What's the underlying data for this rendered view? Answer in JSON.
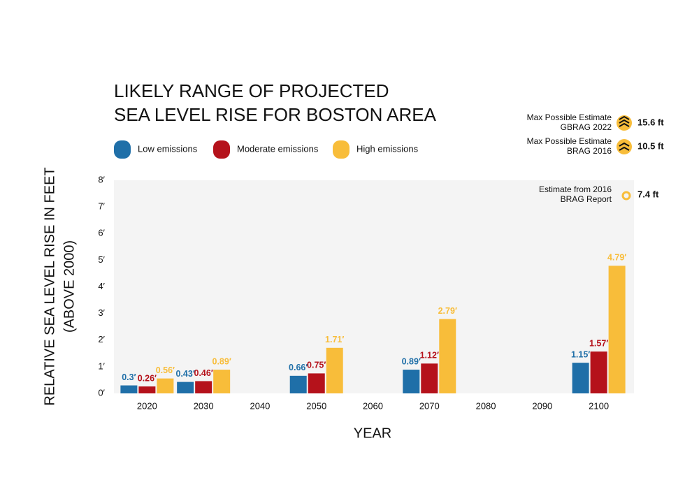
{
  "chart_data": {
    "type": "bar",
    "title": [
      "LIKELY RANGE OF PROJECTED",
      "SEA LEVEL RISE FOR BOSTON AREA"
    ],
    "y_label": [
      "RELATIVE SEA LEVEL RISE IN FEET",
      "(ABOVE 2000)"
    ],
    "x_label": "YEAR",
    "categories": [
      "2020",
      "2030",
      "2040",
      "2050",
      "2060",
      "2070",
      "2080",
      "2090",
      "2100"
    ],
    "series": [
      {
        "name": "Low emissions",
        "color": "#1f6fa8",
        "values": [
          0.3,
          0.43,
          null,
          0.66,
          null,
          0.89,
          null,
          null,
          1.15
        ],
        "value_labels": [
          "0.3′",
          "0.43′",
          null,
          "0.66′",
          null,
          "0.89′",
          null,
          null,
          "1.15′"
        ]
      },
      {
        "name": "Moderate emissions",
        "color": "#b5121b",
        "values": [
          0.26,
          0.46,
          null,
          0.75,
          null,
          1.12,
          null,
          null,
          1.57
        ],
        "value_labels": [
          "0.26′",
          "0.46′",
          null,
          "0.75′",
          null,
          "1.12′",
          null,
          null,
          "1.57′"
        ]
      },
      {
        "name": "High emissions",
        "color": "#f8bd3a",
        "values": [
          0.56,
          0.89,
          null,
          1.71,
          null,
          2.79,
          null,
          null,
          4.79
        ],
        "value_labels": [
          "0.56′",
          "0.89′",
          null,
          "1.71′",
          null,
          "2.79′",
          null,
          null,
          "4.79′"
        ]
      }
    ],
    "ylim": [
      0,
      8
    ],
    "yticks": [
      {
        "value": 0,
        "label": "0′"
      },
      {
        "value": 1,
        "label": "1′"
      },
      {
        "value": 2,
        "label": "2′"
      },
      {
        "value": 3,
        "label": "3′"
      },
      {
        "value": 4,
        "label": "4′"
      },
      {
        "value": 5,
        "label": "5′"
      },
      {
        "value": 6,
        "label": "6′"
      },
      {
        "value": 7,
        "label": "7′"
      },
      {
        "value": 8,
        "label": "8′"
      }
    ],
    "annotations": [
      {
        "lines": [
          "Max Possible Estimate",
          "GBRAG 2022"
        ],
        "value": "15.6 ft"
      },
      {
        "lines": [
          "Max Possible Estimate",
          "BRAG 2016"
        ],
        "value": "10.5 ft"
      },
      {
        "lines": [
          "Estimate from 2016",
          "BRAG Report"
        ],
        "value": "7.4 ft"
      }
    ]
  }
}
